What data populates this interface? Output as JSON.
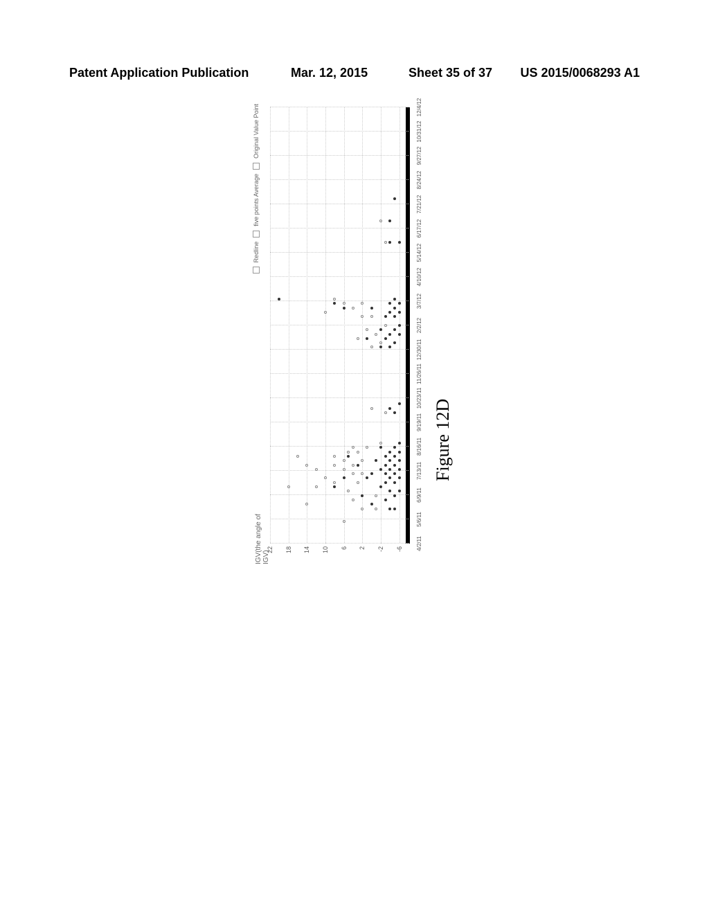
{
  "header": {
    "left": "Patent Application Publication",
    "date": "Mar. 12, 2015",
    "sheet": "Sheet 35 of 37",
    "pub_number": "US 2015/0068293 A1"
  },
  "figure_caption": "Figure 12D",
  "chart": {
    "type": "scatter",
    "title_line1": "IGV(the angle of",
    "title_line2": "IGV)",
    "legend": {
      "item1": "Redline",
      "item2": "five points Average",
      "item3": "Original Value Point"
    },
    "ylim": [
      -8,
      22
    ],
    "ytick_step": 4,
    "y_ticks": [
      22,
      18,
      14,
      10,
      6,
      2,
      -2,
      -6
    ],
    "x_labels": [
      "4/2/11",
      "5/6/11",
      "6/9/11",
      "7/13/11",
      "8/16/11",
      "9/19/11",
      "10/23/11",
      "11/26/11",
      "12/30/11",
      "2/2/12",
      "3/7/12",
      "4/10/12",
      "5/14/12",
      "6/17/12",
      "7/21/12",
      "8/24/12",
      "9/27/12",
      "10/31/12",
      "12/4/12"
    ],
    "background_color": "#ffffff",
    "grid_color": "#cccccc",
    "axis_color": "#000000",
    "point_dark_color": "#333333",
    "point_light_color": "#888888",
    "points_dark": [
      {
        "x": 0.08,
        "y": -5
      },
      {
        "x": 0.08,
        "y": -4
      },
      {
        "x": 0.09,
        "y": 0
      },
      {
        "x": 0.1,
        "y": -3
      },
      {
        "x": 0.11,
        "y": 2
      },
      {
        "x": 0.11,
        "y": -5
      },
      {
        "x": 0.12,
        "y": -6
      },
      {
        "x": 0.12,
        "y": -4
      },
      {
        "x": 0.13,
        "y": -2
      },
      {
        "x": 0.13,
        "y": 8
      },
      {
        "x": 0.14,
        "y": -5
      },
      {
        "x": 0.14,
        "y": -3
      },
      {
        "x": 0.15,
        "y": -6
      },
      {
        "x": 0.15,
        "y": -4
      },
      {
        "x": 0.15,
        "y": 1
      },
      {
        "x": 0.15,
        "y": 6
      },
      {
        "x": 0.16,
        "y": -5
      },
      {
        "x": 0.16,
        "y": -3
      },
      {
        "x": 0.16,
        "y": 0
      },
      {
        "x": 0.17,
        "y": -6
      },
      {
        "x": 0.17,
        "y": -4
      },
      {
        "x": 0.17,
        "y": -2
      },
      {
        "x": 0.18,
        "y": -5
      },
      {
        "x": 0.18,
        "y": -3
      },
      {
        "x": 0.18,
        "y": 3
      },
      {
        "x": 0.19,
        "y": -6
      },
      {
        "x": 0.19,
        "y": -4
      },
      {
        "x": 0.19,
        "y": -1
      },
      {
        "x": 0.2,
        "y": -5
      },
      {
        "x": 0.2,
        "y": -3
      },
      {
        "x": 0.2,
        "y": 5
      },
      {
        "x": 0.21,
        "y": -6
      },
      {
        "x": 0.21,
        "y": -4
      },
      {
        "x": 0.22,
        "y": -5
      },
      {
        "x": 0.22,
        "y": -2
      },
      {
        "x": 0.23,
        "y": -6
      },
      {
        "x": 0.3,
        "y": -5
      },
      {
        "x": 0.31,
        "y": -4
      },
      {
        "x": 0.32,
        "y": -6
      },
      {
        "x": 0.45,
        "y": -4
      },
      {
        "x": 0.45,
        "y": -2
      },
      {
        "x": 0.46,
        "y": -5
      },
      {
        "x": 0.47,
        "y": -3
      },
      {
        "x": 0.47,
        "y": 1
      },
      {
        "x": 0.48,
        "y": -6
      },
      {
        "x": 0.48,
        "y": -4
      },
      {
        "x": 0.49,
        "y": -5
      },
      {
        "x": 0.49,
        "y": -2
      },
      {
        "x": 0.5,
        "y": -6
      },
      {
        "x": 0.52,
        "y": -5
      },
      {
        "x": 0.52,
        "y": -3
      },
      {
        "x": 0.53,
        "y": -6
      },
      {
        "x": 0.53,
        "y": -4
      },
      {
        "x": 0.54,
        "y": -5
      },
      {
        "x": 0.54,
        "y": 0
      },
      {
        "x": 0.54,
        "y": 6
      },
      {
        "x": 0.55,
        "y": -6
      },
      {
        "x": 0.55,
        "y": -4
      },
      {
        "x": 0.55,
        "y": 8
      },
      {
        "x": 0.56,
        "y": -5
      },
      {
        "x": 0.56,
        "y": 20
      },
      {
        "x": 0.69,
        "y": -4
      },
      {
        "x": 0.69,
        "y": -6
      },
      {
        "x": 0.74,
        "y": -4
      },
      {
        "x": 0.79,
        "y": -5
      }
    ],
    "points_light": [
      {
        "x": 0.05,
        "y": 6
      },
      {
        "x": 0.08,
        "y": 2
      },
      {
        "x": 0.08,
        "y": -1
      },
      {
        "x": 0.09,
        "y": 14
      },
      {
        "x": 0.1,
        "y": 4
      },
      {
        "x": 0.11,
        "y": -1
      },
      {
        "x": 0.12,
        "y": 5
      },
      {
        "x": 0.13,
        "y": 12
      },
      {
        "x": 0.13,
        "y": 18
      },
      {
        "x": 0.14,
        "y": 8
      },
      {
        "x": 0.14,
        "y": 3
      },
      {
        "x": 0.15,
        "y": 10
      },
      {
        "x": 0.16,
        "y": 4
      },
      {
        "x": 0.16,
        "y": 2
      },
      {
        "x": 0.17,
        "y": 12
      },
      {
        "x": 0.17,
        "y": 6
      },
      {
        "x": 0.18,
        "y": 14
      },
      {
        "x": 0.18,
        "y": 8
      },
      {
        "x": 0.18,
        "y": 4
      },
      {
        "x": 0.19,
        "y": 2
      },
      {
        "x": 0.19,
        "y": 6
      },
      {
        "x": 0.2,
        "y": 16
      },
      {
        "x": 0.2,
        "y": 8
      },
      {
        "x": 0.21,
        "y": 3
      },
      {
        "x": 0.21,
        "y": 5
      },
      {
        "x": 0.22,
        "y": 1
      },
      {
        "x": 0.22,
        "y": 4
      },
      {
        "x": 0.23,
        "y": -2
      },
      {
        "x": 0.3,
        "y": -3
      },
      {
        "x": 0.31,
        "y": 0
      },
      {
        "x": 0.45,
        "y": 0
      },
      {
        "x": 0.46,
        "y": -2
      },
      {
        "x": 0.47,
        "y": 3
      },
      {
        "x": 0.48,
        "y": -1
      },
      {
        "x": 0.49,
        "y": 1
      },
      {
        "x": 0.5,
        "y": -3
      },
      {
        "x": 0.52,
        "y": 2
      },
      {
        "x": 0.52,
        "y": 0
      },
      {
        "x": 0.53,
        "y": 10
      },
      {
        "x": 0.54,
        "y": 4
      },
      {
        "x": 0.55,
        "y": 6
      },
      {
        "x": 0.55,
        "y": 2
      },
      {
        "x": 0.56,
        "y": 8
      },
      {
        "x": 0.69,
        "y": -3
      },
      {
        "x": 0.74,
        "y": -2
      }
    ]
  }
}
